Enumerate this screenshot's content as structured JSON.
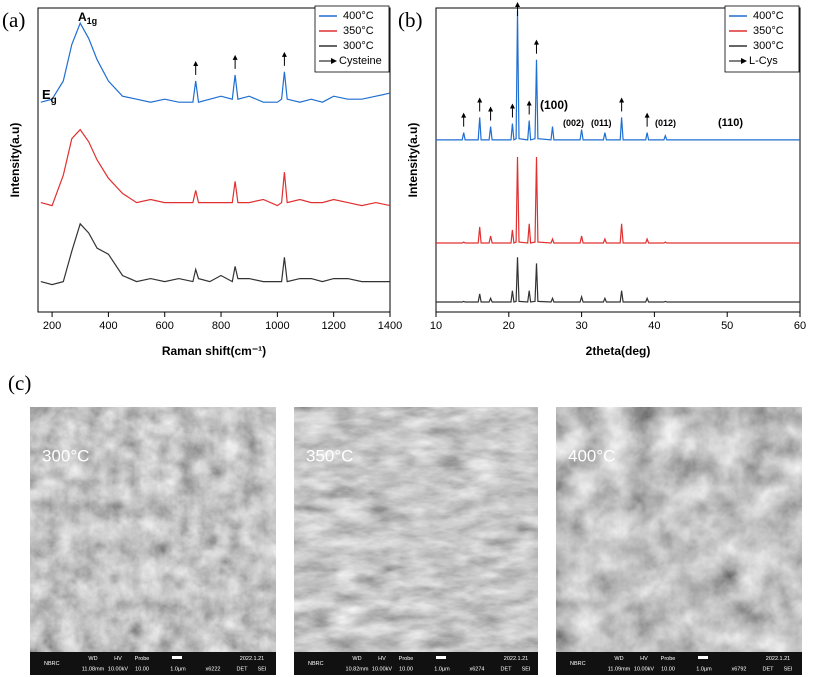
{
  "chart_data": [
    {
      "type": "line",
      "panel_label": "(a)",
      "x_label": "Raman shift(cm⁻¹)",
      "y_label": "Intensity(a.u)",
      "x": [
        160,
        200,
        240,
        270,
        300,
        330,
        360,
        400,
        450,
        500,
        550,
        600,
        650,
        700,
        710,
        720,
        760,
        800,
        840,
        850,
        860,
        900,
        950,
        1000,
        1015,
        1025,
        1035,
        1080,
        1120,
        1160,
        1200,
        1250,
        1300,
        1350,
        1400
      ],
      "series": [
        {
          "name": "400°C",
          "color": "#1f6fd1",
          "values": [
            6.9,
            7.0,
            7.6,
            8.8,
            9.5,
            9.0,
            8.3,
            7.6,
            7.1,
            7.0,
            6.9,
            7.0,
            6.9,
            6.9,
            7.6,
            6.9,
            7.0,
            7.1,
            7.0,
            7.8,
            7.0,
            7.1,
            6.9,
            6.9,
            7.0,
            7.9,
            7.0,
            6.9,
            7.0,
            6.9,
            7.1,
            7.0,
            7.0,
            7.1,
            7.2
          ]
        },
        {
          "name": "350°C",
          "color": "#e03030",
          "values": [
            3.6,
            3.5,
            4.5,
            5.7,
            6.0,
            5.6,
            5.0,
            4.4,
            3.9,
            3.6,
            3.7,
            3.6,
            3.6,
            3.6,
            4.0,
            3.6,
            3.6,
            3.6,
            3.6,
            4.3,
            3.6,
            3.6,
            3.7,
            3.5,
            3.6,
            4.6,
            3.6,
            3.7,
            3.6,
            3.6,
            3.7,
            3.6,
            3.5,
            3.6,
            3.5
          ]
        },
        {
          "name": "300°C",
          "color": "#333333",
          "values": [
            1.0,
            0.9,
            1.0,
            2.0,
            2.9,
            2.6,
            2.1,
            1.9,
            1.2,
            1.0,
            1.1,
            1.0,
            1.1,
            1.0,
            1.4,
            1.1,
            1.0,
            1.2,
            1.0,
            1.5,
            1.1,
            1.1,
            1.0,
            1.0,
            1.0,
            1.8,
            1.0,
            1.1,
            1.1,
            1.0,
            1.1,
            1.1,
            1.0,
            1.0,
            1.0
          ]
        }
      ],
      "marker_x": [
        710,
        850,
        1025
      ],
      "marker_label": "Cysteine",
      "annotations": [
        {
          "text": "A",
          "sub": "1g"
        },
        {
          "text": "E",
          "sub": "g"
        }
      ],
      "xlim": [
        150,
        1400
      ],
      "xticks": [
        200,
        400,
        600,
        800,
        1000,
        1200,
        1400
      ],
      "ylim": [
        0,
        10
      ],
      "legend": "upper right"
    },
    {
      "type": "line",
      "panel_label": "(b)",
      "x_label": "2theta(deg)",
      "y_label": "Intensity(a.u)",
      "x": [
        10,
        13.6,
        13.8,
        14,
        15.8,
        16,
        16.2,
        17.3,
        17.5,
        17.7,
        20.3,
        20.5,
        20.7,
        21,
        21.2,
        21.4,
        22.6,
        22.8,
        23,
        23.6,
        23.8,
        24,
        25.8,
        26,
        26.2,
        29.8,
        30,
        30.2,
        33,
        33.2,
        33.4,
        35.3,
        35.5,
        35.7,
        38.8,
        39,
        39.2,
        41.3,
        41.5,
        41.7,
        60
      ],
      "series": [
        {
          "name": "400°C",
          "color": "#1f6fd1",
          "values": [
            5.66,
            5.66,
            5.9,
            5.66,
            5.66,
            6.4,
            5.66,
            5.66,
            6.1,
            5.66,
            5.66,
            6.2,
            5.66,
            5.7,
            9.9,
            5.7,
            5.66,
            6.3,
            5.66,
            5.7,
            8.3,
            5.7,
            5.66,
            6.1,
            5.66,
            5.66,
            6.0,
            5.66,
            5.66,
            5.9,
            5.66,
            5.66,
            6.4,
            5.66,
            5.66,
            5.9,
            5.66,
            5.66,
            5.8,
            5.66,
            5.66
          ]
        },
        {
          "name": "350°C",
          "color": "#e03030",
          "values": [
            2.27,
            2.27,
            2.3,
            2.27,
            2.27,
            2.8,
            2.27,
            2.27,
            2.5,
            2.27,
            2.27,
            2.7,
            2.27,
            2.3,
            5.1,
            2.3,
            2.27,
            2.9,
            2.27,
            2.3,
            5.1,
            2.3,
            2.27,
            2.4,
            2.27,
            2.27,
            2.5,
            2.27,
            2.27,
            2.4,
            2.27,
            2.27,
            2.9,
            2.27,
            2.27,
            2.4,
            2.27,
            2.27,
            2.3,
            2.27,
            2.27
          ]
        },
        {
          "name": "300°C",
          "color": "#333333",
          "values": [
            0.33,
            0.33,
            0.35,
            0.33,
            0.33,
            0.6,
            0.33,
            0.33,
            0.45,
            0.33,
            0.33,
            0.7,
            0.33,
            0.35,
            1.8,
            0.35,
            0.33,
            0.7,
            0.33,
            0.35,
            1.6,
            0.35,
            0.33,
            0.45,
            0.33,
            0.33,
            0.5,
            0.33,
            0.33,
            0.45,
            0.33,
            0.33,
            0.7,
            0.33,
            0.33,
            0.45,
            0.33,
            0.33,
            0.35,
            0.33,
            0.33
          ]
        }
      ],
      "marker_x": [
        13.8,
        16,
        17.5,
        20.5,
        21.2,
        22.8,
        23.8,
        35.5,
        39
      ],
      "marker_label": "L-Cys",
      "annotations": [
        {
          "text": "(100)"
        },
        {
          "text": "(002)"
        },
        {
          "text": "(011)"
        },
        {
          "text": "(012)"
        },
        {
          "text": "(110)"
        }
      ],
      "xlim": [
        10,
        60
      ],
      "xticks": [
        10,
        20,
        30,
        40,
        50,
        60
      ],
      "ylim": [
        0,
        10
      ],
      "legend": "upper right"
    }
  ],
  "sem_panel_label": "(c)",
  "sem_images": [
    {
      "label": "300°C",
      "footer": [
        "NBRC",
        "WD",
        "HV",
        "Probe",
        "11.08mm",
        "10.00kV",
        "10.00",
        "1.0µm",
        "x6222",
        "2022.1.21",
        "DET",
        "SEI"
      ]
    },
    {
      "label": "350°C",
      "footer": [
        "NBRC",
        "WD",
        "HV",
        "Probe",
        "10.82mm",
        "10.00kV",
        "10.00",
        "1.0µm",
        "x6274",
        "2022.1.21",
        "DET",
        "SEI"
      ]
    },
    {
      "label": "400°C",
      "footer": [
        "NBRC",
        "WD",
        "HV",
        "Probe",
        "11.09mm",
        "10.00kV",
        "10.00",
        "1.0µm",
        "x6792",
        "2022.1.21",
        "DET",
        "SEI"
      ]
    }
  ]
}
